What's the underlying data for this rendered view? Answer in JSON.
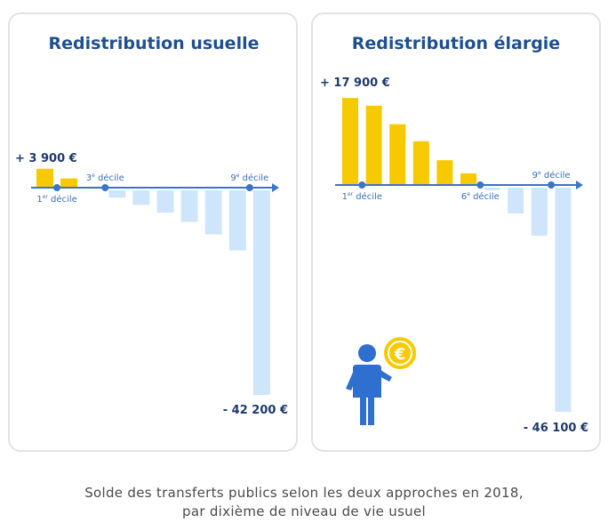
{
  "chart_data": [
    {
      "type": "bar",
      "title": "Redistribution usuelle",
      "categories": [
        "1",
        "2",
        "3",
        "4",
        "5",
        "6",
        "7",
        "8",
        "9",
        "10"
      ],
      "values": [
        3900,
        1900,
        200,
        -1500,
        -3000,
        -4600,
        -6500,
        -9100,
        -12400,
        -42200
      ],
      "max_label": "+ 3 900 €",
      "min_label": "- 42 200 €",
      "decile_markers": [
        {
          "index": 1,
          "prefix": "1",
          "sup": "er",
          "suffix": " décile",
          "pos": "below"
        },
        {
          "index": 3,
          "prefix": "3",
          "sup": "e",
          "suffix": " décile",
          "pos": "above"
        },
        {
          "index": 9,
          "prefix": "9",
          "sup": "e",
          "suffix": " décile",
          "pos": "above"
        }
      ]
    },
    {
      "type": "bar",
      "title": "Redistribution élargie",
      "categories": [
        "1",
        "2",
        "3",
        "4",
        "5",
        "6",
        "7",
        "8",
        "9",
        "10"
      ],
      "values": [
        17900,
        16300,
        12500,
        9000,
        5100,
        2400,
        -500,
        -5300,
        -9900,
        -46100
      ],
      "max_label": "+ 17 900 €",
      "min_label": "- 46 100 €",
      "decile_markers": [
        {
          "index": 1,
          "prefix": "1",
          "sup": "er",
          "suffix": " décile",
          "pos": "below"
        },
        {
          "index": 6,
          "prefix": "6",
          "sup": "e",
          "suffix": " décile",
          "pos": "below"
        },
        {
          "index": 9,
          "prefix": "9",
          "sup": "e",
          "suffix": " décile",
          "pos": "above"
        }
      ]
    }
  ],
  "colors": {
    "positive": "#f7c900",
    "negative": "#cfe5fb",
    "axis": "#3b74c9",
    "title": "#1f4f8f",
    "label": "#1e3a6b",
    "marker_text": "#3b6fb6",
    "person": "#2f6fd0",
    "coin": "#f7c900"
  },
  "caption": {
    "line1": "Solde des transferts publics selon les deux approches en 2018,",
    "line2": "par dixième de niveau de vie usuel"
  },
  "illustration": {
    "icon": "person-with-euro-coin-icon",
    "coin_symbol": "€"
  }
}
